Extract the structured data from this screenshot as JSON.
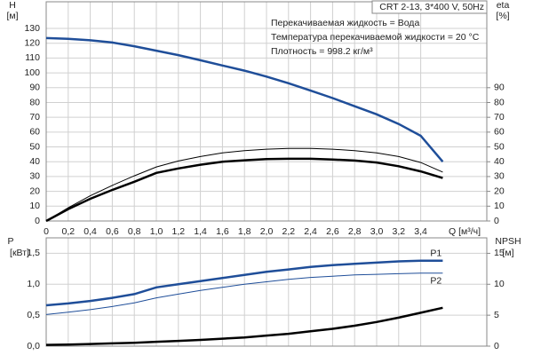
{
  "chart_data": [
    {
      "type": "line",
      "title": "CRT 2-13, 3*400 V, 50Hz",
      "annotations": [
        "Перекачиваемая жидкость = Вода",
        "Температура перекачиваемой жидкости = 20 °C",
        "Плотность = 998.2 кг/м³"
      ],
      "ylabel": "H",
      "ylabel_unit": "[м]",
      "y2label": "eta",
      "y2label_unit": "[%]",
      "xlabel": "Q [м³/ч]",
      "x": [
        0,
        0.2,
        0.4,
        0.6,
        0.8,
        1.0,
        1.2,
        1.4,
        1.6,
        1.8,
        2.0,
        2.2,
        2.4,
        2.6,
        2.8,
        3.0,
        3.2,
        3.4,
        3.6
      ],
      "xlim": [
        0,
        4
      ],
      "xticks": [
        0,
        {
          "value": 0.2,
          "label": "0,2"
        },
        {
          "value": 0.4,
          "label": "0,4"
        },
        {
          "value": 0.6,
          "label": "0,6"
        },
        {
          "value": 0.8,
          "label": "0,8"
        },
        {
          "value": 1.0,
          "label": "1,0"
        },
        {
          "value": 1.2,
          "label": "1,2"
        },
        {
          "value": 1.4,
          "label": "1,4"
        },
        {
          "value": 1.6,
          "label": "1,6"
        },
        {
          "value": 1.8,
          "label": "1,8"
        },
        {
          "value": 2.0,
          "label": "2,0"
        },
        {
          "value": 2.2,
          "label": "2,2"
        },
        {
          "value": 2.4,
          "label": "2,4"
        },
        {
          "value": 2.6,
          "label": "2,6"
        },
        {
          "value": 2.8,
          "label": "2,8"
        },
        {
          "value": 3.0,
          "label": "3,0"
        },
        {
          "value": 3.2,
          "label": "3,2"
        },
        {
          "value": 3.4,
          "label": "3,4"
        }
      ],
      "ylim": [
        0,
        148
      ],
      "yticks": [
        0,
        10,
        20,
        30,
        40,
        50,
        60,
        70,
        80,
        90,
        100,
        110,
        120,
        130
      ],
      "y2lim": [
        0,
        148
      ],
      "y2ticks": [
        0,
        10,
        20,
        30,
        40,
        50,
        60,
        70,
        80,
        90
      ],
      "grid": true,
      "series": [
        {
          "color": "#1f4e99",
          "line_width": 2.5,
          "values": [
            123.5,
            123,
            122,
            120.5,
            118,
            115,
            112,
            108.5,
            105,
            101.5,
            97.5,
            93,
            88,
            83,
            77.5,
            72,
            65.5,
            57.5,
            40
          ]
        },
        {
          "color": "#000000",
          "line_width": 1,
          "axis": "y2",
          "values": [
            0,
            9,
            17,
            24,
            30.5,
            36.5,
            40.5,
            43.5,
            46,
            47.5,
            48.5,
            49,
            49,
            48.5,
            47.5,
            46,
            43.5,
            39.5,
            33
          ]
        },
        {
          "color": "#000000",
          "line_width": 2.5,
          "axis": "y2",
          "values": [
            0,
            8,
            15,
            21,
            26.5,
            32.5,
            35.5,
            38,
            40,
            41,
            41.8,
            42,
            42,
            41.5,
            40.8,
            39.5,
            37,
            33.5,
            29
          ]
        }
      ]
    },
    {
      "type": "line",
      "ylabel": "P",
      "ylabel_unit": "[кВт]",
      "y2label": "NPSH",
      "y2label_unit": "[м]",
      "x": [
        0,
        0.2,
        0.4,
        0.6,
        0.8,
        1.0,
        1.2,
        1.4,
        1.6,
        1.8,
        2.0,
        2.2,
        2.4,
        2.6,
        2.8,
        3.0,
        3.2,
        3.4,
        3.6
      ],
      "ylim": [
        0,
        1.75
      ],
      "yticks": [
        {
          "value": 0,
          "label": "0,0"
        },
        {
          "value": 0.5,
          "label": "0,5"
        },
        {
          "value": 1.0,
          "label": "1,0"
        },
        {
          "value": 1.5,
          "label": "1,5"
        }
      ],
      "y2lim": [
        0,
        17.5
      ],
      "y2ticks": [
        0,
        5,
        10,
        15
      ],
      "grid": true,
      "series": [
        {
          "name": "P1",
          "color": "#1f4e99",
          "line_width": 2.5,
          "values": [
            0.66,
            0.69,
            0.73,
            0.78,
            0.84,
            0.95,
            1.0,
            1.05,
            1.1,
            1.15,
            1.2,
            1.24,
            1.28,
            1.31,
            1.33,
            1.35,
            1.37,
            1.38,
            1.38
          ]
        },
        {
          "name": "P2",
          "color": "#1f4e99",
          "line_width": 1,
          "values": [
            0.51,
            0.55,
            0.59,
            0.64,
            0.7,
            0.78,
            0.84,
            0.9,
            0.95,
            1.0,
            1.04,
            1.08,
            1.11,
            1.13,
            1.15,
            1.16,
            1.17,
            1.18,
            1.18
          ]
        },
        {
          "color": "#000000",
          "line_width": 2.5,
          "axis": "y2",
          "values": [
            0.2,
            0.25,
            0.35,
            0.45,
            0.55,
            0.7,
            0.85,
            1.0,
            1.2,
            1.4,
            1.7,
            2.0,
            2.4,
            2.8,
            3.3,
            3.9,
            4.6,
            5.4,
            6.2
          ]
        }
      ]
    }
  ]
}
